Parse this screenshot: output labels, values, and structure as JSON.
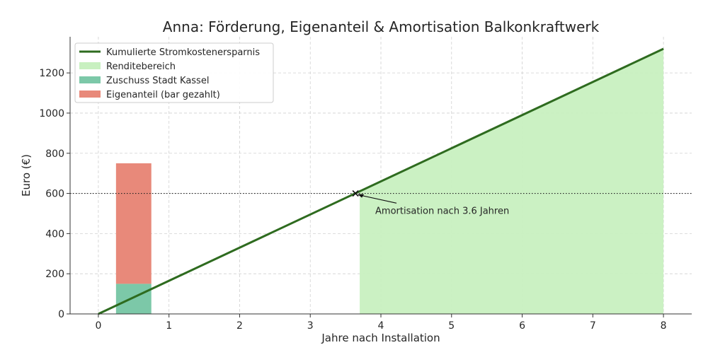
{
  "chart_data": {
    "type": "line",
    "title": "Anna: Förderung, Eigenanteil & Amortisation Balkonkraftwerk",
    "xlabel": "Jahre nach Installation",
    "ylabel": "Euro (€)",
    "xlim": [
      -0.4,
      8.4
    ],
    "ylim": [
      0,
      1380
    ],
    "x_ticks": [
      0,
      1,
      2,
      3,
      4,
      5,
      6,
      7,
      8
    ],
    "y_ticks": [
      0,
      200,
      400,
      600,
      800,
      1000,
      1200
    ],
    "grid": true,
    "legend_position": "top-left",
    "series": [
      {
        "name": "Kumulierte Stromkostenersparnis",
        "kind": "line",
        "color": "#2e6b1f",
        "x": [
          0,
          8
        ],
        "y": [
          0,
          1320
        ]
      },
      {
        "name": "Renditebereich",
        "kind": "area",
        "color": "#c8f0c0",
        "x": [
          3.7,
          8
        ],
        "y": [
          0,
          1320
        ]
      },
      {
        "name": "Zuschuss Stadt Kassel",
        "kind": "bar",
        "color": "#7cc8a8",
        "x": 0.5,
        "width": 0.5,
        "value": 150
      },
      {
        "name": "Eigenanteil (bar gezahlt)",
        "kind": "bar",
        "color": "#e8897a",
        "x": 0.5,
        "width": 0.5,
        "bottom": 150,
        "value": 600
      }
    ],
    "hline": {
      "y": 600,
      "style": "dotted",
      "color": "#222222"
    },
    "marker": {
      "x": 3.64,
      "y": 600,
      "symbol": "x"
    },
    "annotation": {
      "text": "Amortisation nach 3.6 Jahren",
      "x": 3.64,
      "y": 600,
      "text_x": 3.92,
      "text_y": 520
    }
  }
}
